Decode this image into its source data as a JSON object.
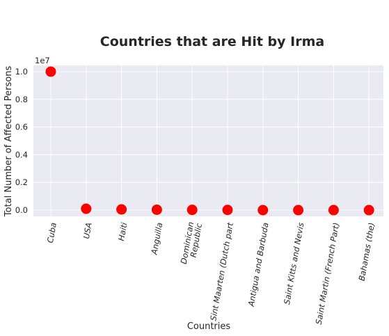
{
  "chart_data": {
    "type": "scatter",
    "title": "Countries that are Hit by Irma",
    "xlabel": "Countries",
    "ylabel": "Total Number of Affected Persons",
    "y_offset_label": "1e7",
    "categories": [
      "Cuba",
      "USA",
      "Haiti",
      "Anguilla",
      "Dominican\nRepublic",
      "Sint Maarten (Dutch part",
      "Antigua and Barbuda",
      "Saint Kitts and Nevis",
      "Saint Martin (French Part)",
      "Bahamas (the)"
    ],
    "series": [
      {
        "values": [
          10000000,
          100000,
          50000,
          30000,
          20000,
          15000,
          1800,
          1000,
          500,
          200
        ]
      }
    ],
    "ylim": [
      -0.045,
      1.045
    ],
    "yticks": [
      "0.0",
      "0.2",
      "0.4",
      "0.6",
      "0.8",
      "1.0"
    ],
    "grid": true,
    "colors": {
      "marker": "#ff0000",
      "plot_background": "#eaeaf2",
      "grid": "#ffffff"
    }
  }
}
